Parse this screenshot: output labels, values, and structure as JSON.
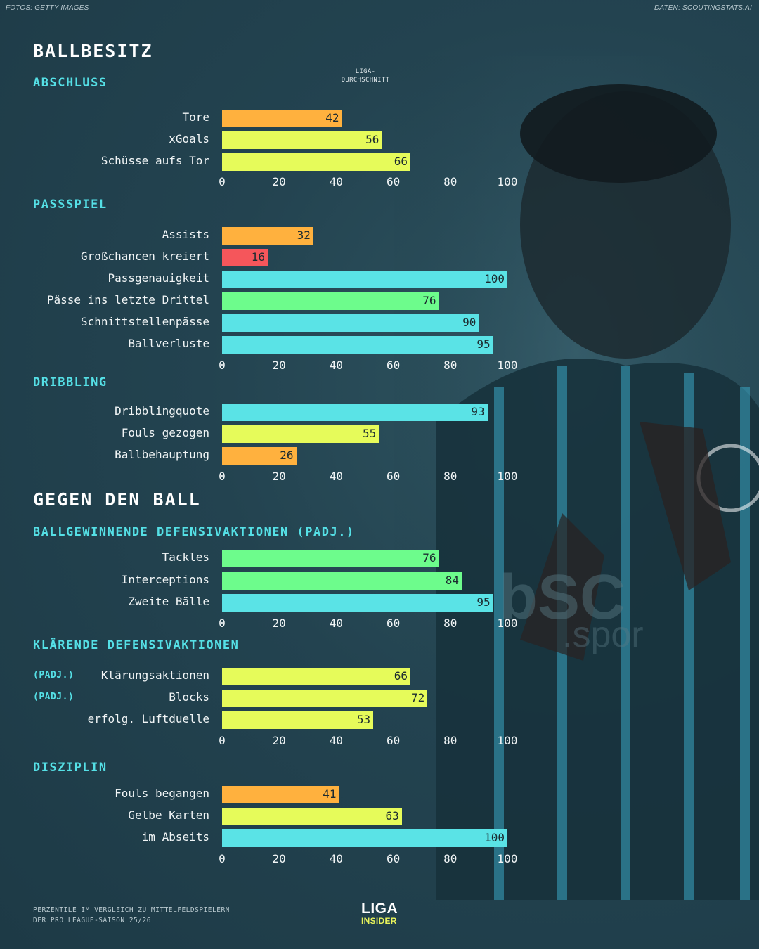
{
  "credits": {
    "photo": "FOTOS: GETTY IMAGES",
    "data": "DATEN: SCOUTINGSTATS.AI"
  },
  "average_label": [
    "LIGA-",
    "DURCHSCHNITT"
  ],
  "footer": [
    "PERZENTILE IM VERGLEICH ZU MITTELFELDSPIELERN",
    "DER PRO LEAGUE-SAISON 25/26"
  ],
  "logo": {
    "line1": "LIGA",
    "line2": "INSIDER"
  },
  "colors": {
    "orange": "#ffb13e",
    "red": "#f5565b",
    "yellow": "#e6fb5a",
    "green": "#6dfc8c",
    "cyan": "#5ae3e6",
    "accent": "#55e0e6"
  },
  "chart_data": {
    "type": "bar",
    "orientation": "horizontal",
    "xlim": [
      0,
      100
    ],
    "ticks": [
      "0",
      "20",
      "40",
      "60",
      "80",
      "100"
    ],
    "league_average": 50,
    "sections": [
      {
        "title": "BALLBESITZ",
        "groups": [
          {
            "title": "ABSCHLUSS",
            "categories": [
              "Tore",
              "xGoals",
              "Schüsse aufs Tor"
            ],
            "values": [
              42,
              56,
              66
            ],
            "colors": [
              "orange",
              "yellow",
              "yellow"
            ]
          },
          {
            "title": "PASSSPIEL",
            "categories": [
              "Assists",
              "Großchancen kreiert",
              "Passgenauigkeit",
              "Pässe ins letzte Drittel",
              "Schnittstellenpässe",
              "Ballverluste"
            ],
            "values": [
              32,
              16,
              100,
              76,
              90,
              95
            ],
            "colors": [
              "orange",
              "red",
              "cyan",
              "green",
              "cyan",
              "cyan"
            ]
          },
          {
            "title": "DRIBBLING",
            "categories": [
              "Dribblingquote",
              "Fouls gezogen",
              "Ballbehauptung"
            ],
            "values": [
              93,
              55,
              26
            ],
            "colors": [
              "cyan",
              "yellow",
              "orange"
            ]
          }
        ]
      },
      {
        "title": "GEGEN DEN BALL",
        "groups": [
          {
            "title": "BALLGEWINNENDE DEFENSIVAKTIONEN (PADJ.)",
            "categories": [
              "Tackles",
              "Interceptions",
              "Zweite Bälle"
            ],
            "values": [
              76,
              84,
              95
            ],
            "colors": [
              "green",
              "green",
              "cyan"
            ]
          },
          {
            "title": "KLÄRENDE DEFENSIVAKTIONEN",
            "categories": [
              "Klärungsaktionen",
              "Blocks",
              "erfolg. Luftduelle"
            ],
            "values": [
              66,
              72,
              53
            ],
            "colors": [
              "yellow",
              "yellow",
              "yellow"
            ],
            "notes": [
              "(PADJ.)",
              "(PADJ.)",
              ""
            ]
          },
          {
            "title": "DISZIPLIN",
            "categories": [
              "Fouls begangen",
              "Gelbe Karten",
              "im Abseits"
            ],
            "values": [
              41,
              63,
              100
            ],
            "colors": [
              "orange",
              "yellow",
              "cyan"
            ]
          }
        ]
      }
    ]
  }
}
